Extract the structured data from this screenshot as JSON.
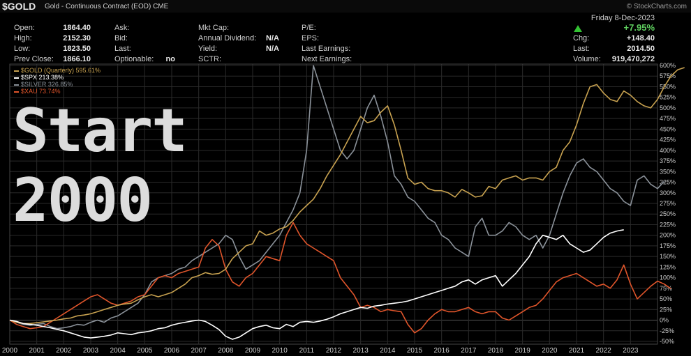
{
  "header": {
    "symbol": "$GOLD",
    "description": "Gold - Continuous Contract (EOD)",
    "exchange": "CME",
    "brand": "© StockCharts.com"
  },
  "quote": {
    "open_label": "Open:",
    "open": "1864.40",
    "high_label": "High:",
    "high": "2152.30",
    "low_label": "Low:",
    "low": "1823.50",
    "prev_close_label": "Prev Close:",
    "prev_close": "1866.10",
    "ask_label": "Ask:",
    "bid_label": "Bid:",
    "last_label": "Last:",
    "optionable_label": "Optionable:",
    "optionable": "no",
    "mkt_cap_label": "Mkt Cap:",
    "annual_dividend_label": "Annual Dividend:",
    "annual_dividend": "N/A",
    "yield_label": "Yield:",
    "yield": "N/A",
    "sctr_label": "SCTR:",
    "pe_label": "P/E:",
    "eps_label": "EPS:",
    "last_earnings_label": "Last Earnings:",
    "next_earnings_label": "Next Earnings:",
    "date": "Friday  8-Dec-2023",
    "change_pct": "+7.95%",
    "chg_label": "Chg:",
    "chg": "+148.40",
    "last2_label": "Last:",
    "last2": "2014.50",
    "volume_label": "Volume:",
    "volume": "919,470,272",
    "up_color": "#34c334"
  },
  "overlay": {
    "line1": "Start",
    "line2": "2000"
  },
  "legend": [
    {
      "text": "$GOLD (Quarterly) 595.61%",
      "color": "#c8a250"
    },
    {
      "text": "$SPX 213.38%",
      "color": "#ffffff"
    },
    {
      "text": "$SILVER 326.85%",
      "color": "#8a9199"
    },
    {
      "text": "$XAU 73.74%",
      "color": "#e0552b"
    }
  ],
  "chart_data": {
    "type": "line",
    "x_start": 2000.0,
    "x_step": 0.25,
    "xlim": [
      2000,
      2024
    ],
    "x_tick_labels": [
      "2000",
      "2001",
      "2002",
      "2003",
      "2004",
      "2005",
      "2006",
      "2007",
      "2008",
      "2009",
      "2010",
      "2011",
      "2012",
      "2013",
      "2014",
      "2015",
      "2016",
      "2017",
      "2018",
      "2019",
      "2020",
      "2021",
      "2022",
      "2023"
    ],
    "ylim": [
      -50,
      600
    ],
    "y_tick_labels": [
      "600%",
      "575%",
      "550%",
      "525%",
      "500%",
      "475%",
      "450%",
      "425%",
      "400%",
      "375%",
      "350%",
      "325%",
      "300%",
      "275%",
      "250%",
      "225%",
      "200%",
      "175%",
      "150%",
      "125%",
      "100%",
      "75%",
      "50%",
      "25%",
      "0%",
      "-25%",
      "-50%"
    ],
    "y_tick_values": [
      600,
      575,
      550,
      525,
      500,
      475,
      450,
      425,
      400,
      375,
      350,
      325,
      300,
      275,
      250,
      225,
      200,
      175,
      150,
      125,
      100,
      75,
      50,
      25,
      0,
      -25,
      -50
    ],
    "grid": true,
    "series": [
      {
        "name": "$GOLD",
        "color": "#c8a250",
        "values": [
          0,
          -5,
          -8,
          -8,
          -6,
          -4,
          -2,
          0,
          3,
          5,
          10,
          12,
          15,
          20,
          25,
          30,
          35,
          38,
          40,
          48,
          55,
          60,
          55,
          60,
          65,
          75,
          85,
          100,
          105,
          112,
          108,
          110,
          120,
          145,
          160,
          175,
          180,
          210,
          200,
          205,
          215,
          220,
          235,
          255,
          270,
          285,
          310,
          340,
          365,
          390,
          420,
          450,
          480,
          465,
          470,
          490,
          505,
          460,
          400,
          335,
          320,
          325,
          310,
          305,
          305,
          300,
          290,
          308,
          300,
          290,
          293,
          315,
          310,
          330,
          335,
          340,
          330,
          335,
          335,
          330,
          350,
          360,
          400,
          420,
          460,
          510,
          550,
          555,
          535,
          520,
          515,
          540,
          530,
          515,
          505,
          500,
          520,
          550,
          575,
          590,
          595
        ]
      },
      {
        "name": "$SPX",
        "color": "#ffffff",
        "values": [
          0,
          -3,
          -8,
          -10,
          -12,
          -15,
          -18,
          -22,
          -25,
          -30,
          -35,
          -40,
          -42,
          -40,
          -38,
          -35,
          -30,
          -32,
          -34,
          -30,
          -28,
          -25,
          -20,
          -18,
          -12,
          -8,
          -5,
          -2,
          0,
          -3,
          -12,
          -22,
          -38,
          -45,
          -40,
          -30,
          -20,
          -15,
          -12,
          -18,
          -20,
          -10,
          -15,
          -5,
          -3,
          -5,
          -2,
          2,
          8,
          15,
          20,
          25,
          30,
          28,
          33,
          35,
          38,
          40,
          42,
          45,
          50,
          55,
          60,
          65,
          70,
          75,
          80,
          90,
          95,
          85,
          95,
          100,
          105,
          80,
          95,
          110,
          130,
          150,
          180,
          200,
          195,
          190,
          200,
          180,
          170,
          160,
          165,
          180,
          195,
          205,
          210,
          213
        ]
      },
      {
        "name": "$SILVER",
        "color": "#8a9199",
        "values": [
          0,
          -5,
          -10,
          -12,
          -10,
          -8,
          -15,
          -20,
          -18,
          -15,
          -10,
          -12,
          -5,
          0,
          -5,
          5,
          10,
          20,
          30,
          40,
          60,
          90,
          100,
          105,
          110,
          120,
          125,
          140,
          150,
          160,
          170,
          180,
          200,
          190,
          150,
          120,
          130,
          140,
          160,
          180,
          200,
          230,
          260,
          300,
          400,
          600,
          550,
          500,
          450,
          400,
          380,
          400,
          450,
          500,
          530,
          480,
          420,
          340,
          320,
          290,
          280,
          260,
          240,
          230,
          200,
          190,
          170,
          160,
          150,
          220,
          240,
          200,
          200,
          210,
          230,
          220,
          200,
          190,
          200,
          170,
          200,
          250,
          300,
          340,
          370,
          380,
          360,
          350,
          330,
          310,
          300,
          280,
          270,
          330,
          340,
          320,
          310,
          327
        ]
      },
      {
        "name": "$XAU",
        "color": "#e0552b",
        "values": [
          0,
          -10,
          -15,
          -20,
          -18,
          -15,
          -5,
          5,
          15,
          25,
          35,
          45,
          55,
          60,
          50,
          40,
          35,
          40,
          45,
          55,
          60,
          80,
          100,
          105,
          100,
          110,
          115,
          120,
          125,
          170,
          190,
          175,
          120,
          90,
          80,
          100,
          110,
          130,
          150,
          145,
          140,
          200,
          230,
          200,
          180,
          170,
          160,
          150,
          140,
          100,
          80,
          60,
          30,
          35,
          30,
          20,
          25,
          22,
          20,
          -10,
          -30,
          -20,
          0,
          15,
          25,
          20,
          20,
          25,
          30,
          20,
          15,
          20,
          20,
          5,
          0,
          10,
          20,
          30,
          35,
          50,
          70,
          90,
          100,
          105,
          110,
          100,
          90,
          80,
          85,
          75,
          95,
          130,
          85,
          50,
          65,
          80,
          92,
          85,
          74
        ]
      }
    ]
  }
}
